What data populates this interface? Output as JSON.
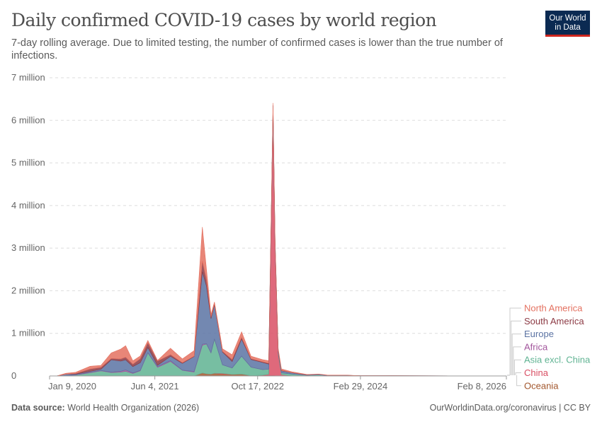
{
  "header": {
    "title": "Daily confirmed COVID-19 cases by world region",
    "subtitle": "7-day rolling average. Due to limited testing, the number of confirmed cases is lower than the true number of infections.",
    "logo_text": "Our World in Data"
  },
  "footer": {
    "source_label": "Data source:",
    "source": "World Health Organization (2026)",
    "link": "OurWorldinData.org/coronavirus | CC BY"
  },
  "chart_data": {
    "type": "area",
    "stacked": true,
    "title": "Daily confirmed COVID-19 cases by world region",
    "ylim": [
      0,
      7000000
    ],
    "y_ticks": [
      {
        "v": 0,
        "label": "0"
      },
      {
        "v": 1000000,
        "label": "1 million"
      },
      {
        "v": 2000000,
        "label": "2 million"
      },
      {
        "v": 3000000,
        "label": "3 million"
      },
      {
        "v": 4000000,
        "label": "4 million"
      },
      {
        "v": 5000000,
        "label": "5 million"
      },
      {
        "v": 6000000,
        "label": "6 million"
      },
      {
        "v": 7000000,
        "label": "7 million"
      }
    ],
    "x_ticks": [
      {
        "date": "2020-01-09",
        "label": "Jan 9, 2020"
      },
      {
        "date": "2021-06-04",
        "label": "Jun 4, 2021"
      },
      {
        "date": "2022-10-17",
        "label": "Oct 17, 2022"
      },
      {
        "date": "2024-02-29",
        "label": "Feb 29, 2024"
      },
      {
        "date": "2026-02-08",
        "label": "Feb 8, 2026"
      }
    ],
    "xlim": [
      "2020-01-09",
      "2026-02-08"
    ],
    "grid": "horizontal dashed",
    "legend_placement": "right",
    "x": [
      "2020-01-09",
      "2020-02-15",
      "2020-03-29",
      "2020-05-15",
      "2020-07-24",
      "2020-09-15",
      "2020-11-04",
      "2020-12-20",
      "2021-01-13",
      "2021-02-17",
      "2021-03-25",
      "2021-05-01",
      "2021-06-17",
      "2021-08-19",
      "2021-10-16",
      "2021-12-12",
      "2022-01-21",
      "2022-02-10",
      "2022-03-04",
      "2022-03-21",
      "2022-04-29",
      "2022-06-15",
      "2022-07-31",
      "2022-09-15",
      "2022-11-10",
      "2022-12-10",
      "2022-12-22",
      "2022-12-31",
      "2023-01-10",
      "2023-01-25",
      "2023-02-10",
      "2023-04-01",
      "2023-06-15",
      "2023-08-10",
      "2023-09-20",
      "2023-12-25",
      "2024-03-01",
      "2024-08-01",
      "2025-06-01",
      "2026-02-08"
    ],
    "series": [
      {
        "name": "Oceania",
        "color": "#a2562c",
        "values": [
          0,
          0,
          300,
          50,
          400,
          50,
          20,
          50,
          100,
          50,
          50,
          50,
          100,
          200,
          300,
          500,
          70000,
          50000,
          40000,
          60000,
          45000,
          35000,
          40000,
          5000,
          8000,
          8000,
          8000,
          8000,
          5000,
          4000,
          3000,
          2000,
          1000,
          500,
          300,
          500,
          200,
          300,
          200,
          100
        ]
      },
      {
        "name": "China",
        "color": "#d94f64",
        "values": [
          0,
          2000,
          100,
          0,
          50,
          20,
          20,
          20,
          100,
          20,
          20,
          20,
          20,
          50,
          50,
          100,
          100,
          200,
          1000,
          3000,
          15000,
          300,
          3000,
          1000,
          10000,
          30000,
          3500000,
          6150000,
          3000000,
          500000,
          30000,
          2000,
          500,
          0,
          0,
          1000,
          500,
          500,
          300,
          100
        ]
      },
      {
        "name": "Asia excl. China",
        "color": "#5fb392",
        "values": [
          0,
          1000,
          5000,
          20000,
          75000,
          120000,
          80000,
          90000,
          110000,
          60000,
          120000,
          540000,
          200000,
          340000,
          130000,
          90000,
          650000,
          700000,
          500000,
          800000,
          200000,
          150000,
          420000,
          200000,
          130000,
          120000,
          100000,
          90000,
          60000,
          40000,
          40000,
          40000,
          15000,
          30000,
          8000,
          5000,
          2000,
          3000,
          1500,
          500
        ]
      },
      {
        "name": "Africa",
        "color": "#a2559c",
        "values": [
          0,
          0,
          500,
          2500,
          12000,
          8000,
          10000,
          20000,
          30000,
          10000,
          10000,
          8000,
          20000,
          20000,
          5000,
          15000,
          25000,
          10000,
          5000,
          3000,
          3000,
          3000,
          3000,
          1000,
          1000,
          500,
          500,
          500,
          500,
          300,
          300,
          200,
          100,
          50,
          50,
          50,
          20,
          10,
          10,
          10
        ]
      },
      {
        "name": "Europe",
        "color": "#5b73a3",
        "values": [
          0,
          0,
          35000,
          20000,
          20000,
          30000,
          290000,
          240000,
          240000,
          150000,
          180000,
          120000,
          30000,
          100000,
          160000,
          350000,
          1700000,
          1350000,
          800000,
          800000,
          300000,
          150000,
          400000,
          180000,
          170000,
          120000,
          100000,
          90000,
          70000,
          50000,
          50000,
          30000,
          10000,
          10000,
          8000,
          10000,
          3000,
          2500,
          1000,
          500
        ]
      },
      {
        "name": "South America",
        "color": "#8c3a44",
        "values": [
          0,
          0,
          2000,
          15000,
          55000,
          45000,
          30000,
          50000,
          60000,
          55000,
          95000,
          110000,
          100000,
          40000,
          15000,
          10000,
          250000,
          150000,
          40000,
          30000,
          15000,
          50000,
          40000,
          15000,
          15000,
          20000,
          15000,
          15000,
          10000,
          10000,
          8000,
          5000,
          3000,
          1000,
          1000,
          500,
          300,
          500,
          200,
          100
        ]
      },
      {
        "name": "North America",
        "color": "#e47160",
        "values": [
          0,
          0,
          20000,
          28000,
          65000,
          45000,
          130000,
          230000,
          270000,
          80000,
          65000,
          55000,
          15000,
          150000,
          90000,
          130000,
          800000,
          250000,
          60000,
          40000,
          60000,
          110000,
          130000,
          60000,
          50000,
          60000,
          60000,
          55000,
          50000,
          40000,
          35000,
          20000,
          5000,
          3000,
          4000,
          1000,
          500,
          500,
          200,
          100
        ]
      }
    ]
  }
}
